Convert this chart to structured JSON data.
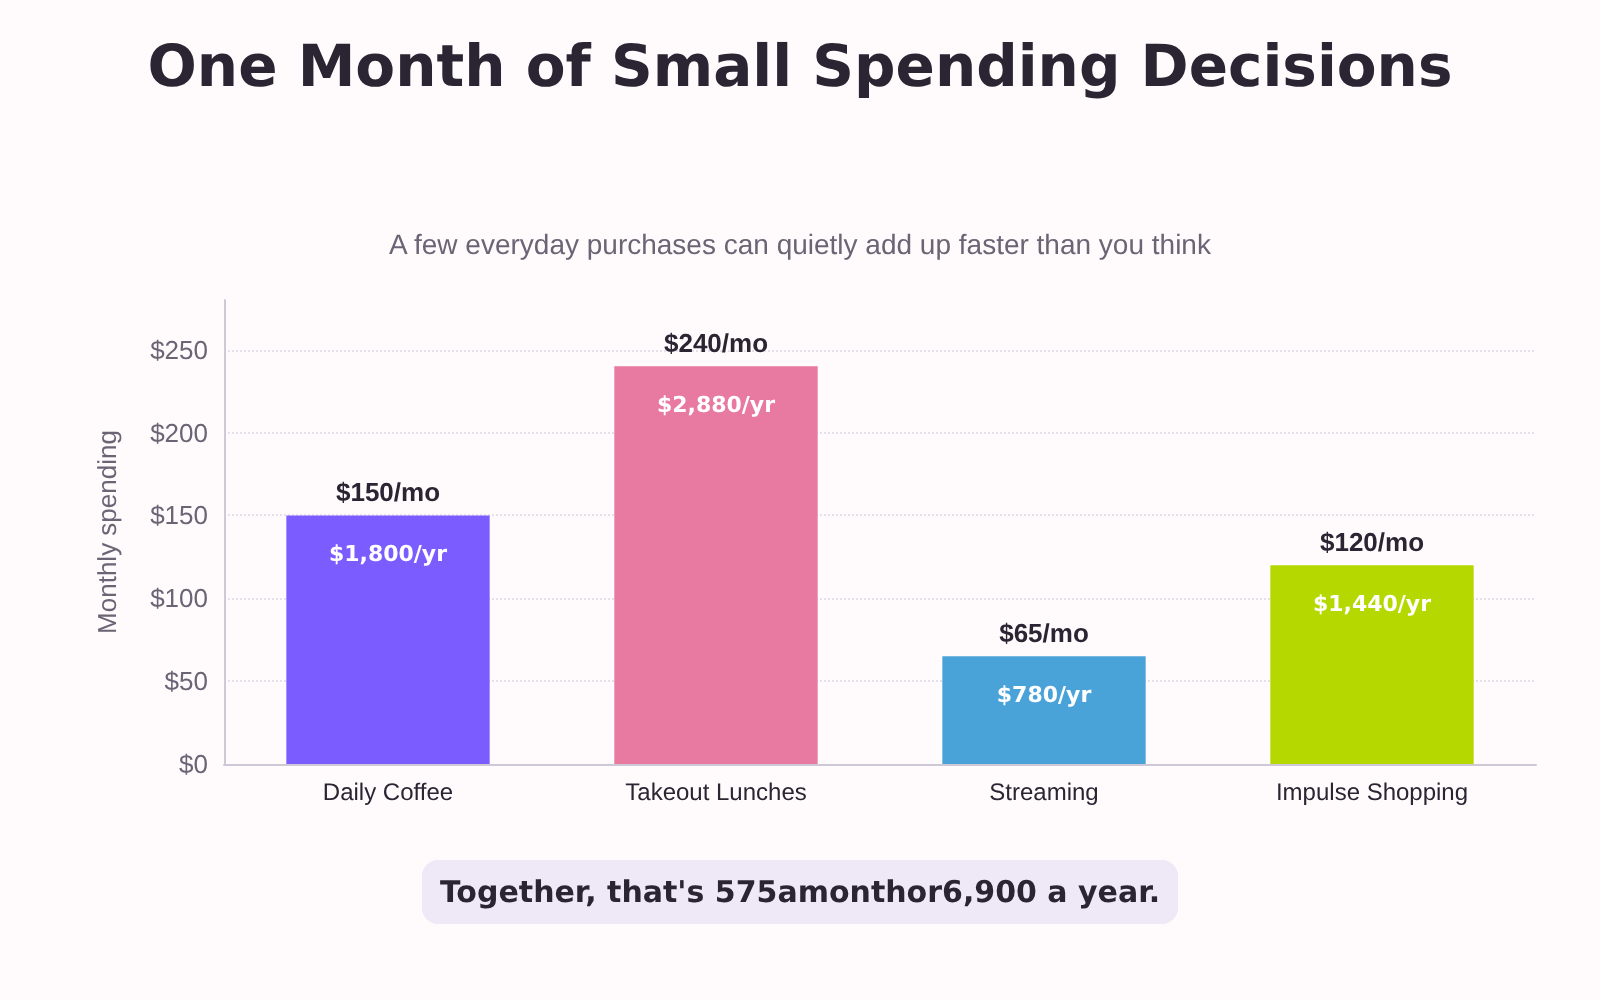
{
  "chart_data": {
    "type": "bar",
    "title": "One Month of Small Spending Decisions",
    "subtitle": "A few everyday purchases can quietly add up faster than you think",
    "ylabel": "Monthly spending",
    "categories": [
      "Daily Coffee",
      "Takeout Lunches",
      "Streaming",
      "Impulse Shopping"
    ],
    "values": [
      150,
      240,
      65,
      120
    ],
    "colors": [
      "#7b5cff",
      "#e879a0",
      "#4aa3d8",
      "#b5d900"
    ],
    "value_labels": [
      "$150/mo",
      "$240/mo",
      "$65/mo",
      "$120/mo"
    ],
    "ylim": [
      0,
      280
    ],
    "yticks": [
      {
        "value": 0,
        "label": "$0"
      },
      {
        "value": 50,
        "label": "$50"
      },
      {
        "value": 100,
        "label": "$100"
      },
      {
        "value": 150,
        "label": "$150"
      },
      {
        "value": 200,
        "label": "$200"
      },
      {
        "value": 250,
        "label": "$250"
      }
    ],
    "grid": "y",
    "annotations": [
      {
        "text": "$1,800/yr",
        "x": "Daily Coffee",
        "y": 150
      },
      {
        "text": "$2,880/yr",
        "x": "Takeout Lunches",
        "y": 240
      },
      {
        "text": "$780/yr",
        "x": "Streaming",
        "y": 65
      },
      {
        "text": "$1,440/yr",
        "x": "Impulse Shopping",
        "y": 120
      },
      "Together, that's 575amonthor6,900 a year."
    ]
  }
}
